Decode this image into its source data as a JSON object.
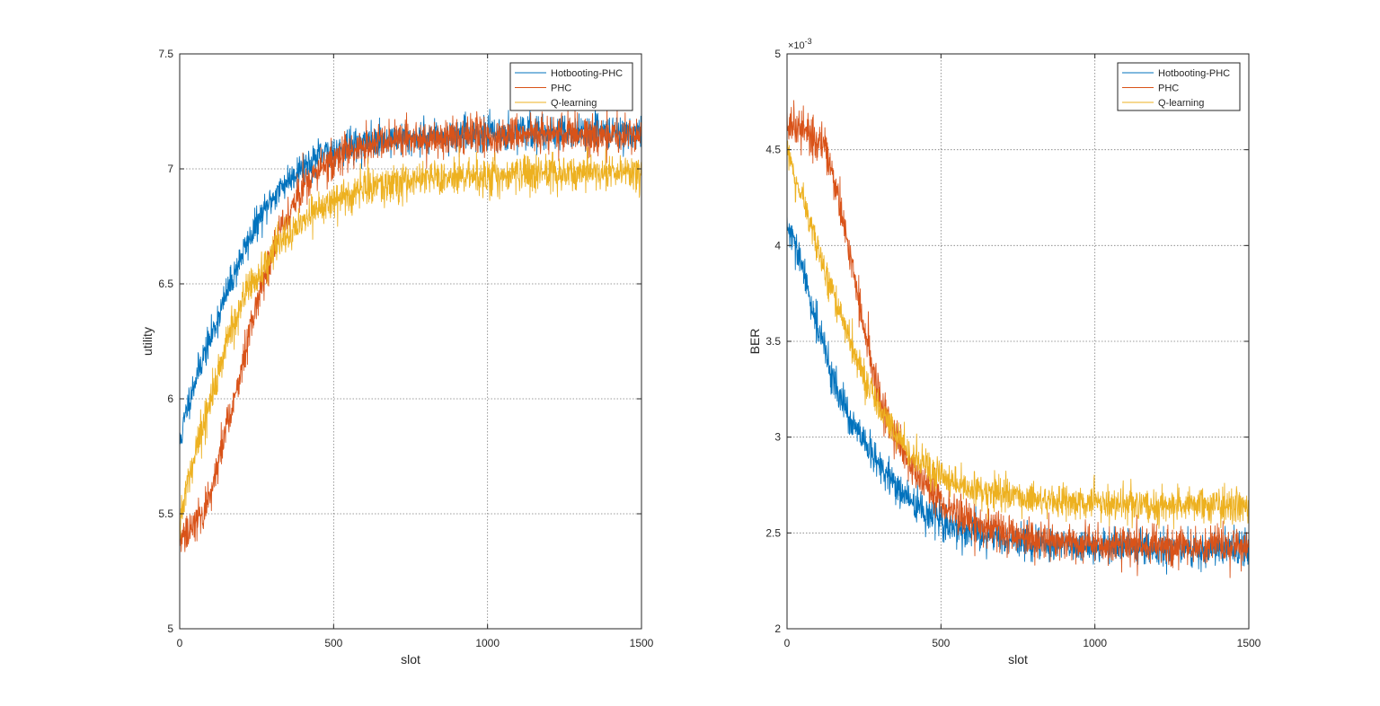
{
  "chart_data": [
    {
      "type": "line",
      "xlabel": "slot",
      "ylabel": "utility",
      "xlim": [
        0,
        1500
      ],
      "ylim": [
        5,
        7.5
      ],
      "xticks": [
        0,
        500,
        1000,
        1500
      ],
      "yticks": [
        5,
        5.5,
        6,
        6.5,
        7,
        7.5
      ],
      "xtick_labels": [
        "0",
        "500",
        "1000",
        "1500"
      ],
      "ytick_labels": [
        "5",
        "5.5",
        "6",
        "6.5",
        "7",
        "7.5"
      ],
      "grid": true,
      "legend_position": "top-right",
      "series": [
        {
          "name": "Hotbooting-PHC",
          "color": "#0072BD",
          "noise": 0.035,
          "x": [
            0,
            25,
            50,
            75,
            100,
            150,
            200,
            250,
            300,
            350,
            400,
            450,
            500,
            600,
            700,
            800,
            900,
            1000,
            1100,
            1200,
            1300,
            1400,
            1500
          ],
          "y": [
            5.8,
            5.97,
            6.08,
            6.18,
            6.26,
            6.45,
            6.62,
            6.76,
            6.87,
            6.95,
            7.01,
            7.05,
            7.08,
            7.11,
            7.13,
            7.14,
            7.15,
            7.15,
            7.16,
            7.16,
            7.16,
            7.16,
            7.16
          ]
        },
        {
          "name": "PHC",
          "color": "#D95319",
          "noise": 0.04,
          "x": [
            0,
            25,
            50,
            75,
            100,
            125,
            150,
            200,
            250,
            300,
            350,
            400,
            450,
            500,
            550,
            600,
            700,
            800,
            900,
            1000,
            1100,
            1200,
            1300,
            1400,
            1500
          ],
          "y": [
            5.38,
            5.42,
            5.44,
            5.5,
            5.6,
            5.72,
            5.86,
            6.13,
            6.42,
            6.64,
            6.8,
            6.92,
            6.99,
            7.04,
            7.08,
            7.1,
            7.12,
            7.13,
            7.14,
            7.14,
            7.15,
            7.15,
            7.15,
            7.15,
            7.15
          ]
        },
        {
          "name": "Q-learning",
          "color": "#EDB120",
          "noise": 0.04,
          "x": [
            0,
            25,
            50,
            75,
            100,
            150,
            200,
            250,
            300,
            350,
            400,
            450,
            500,
            600,
            700,
            800,
            900,
            1000,
            1100,
            1200,
            1300,
            1400,
            1500
          ],
          "y": [
            5.45,
            5.62,
            5.76,
            5.88,
            6.0,
            6.23,
            6.41,
            6.53,
            6.63,
            6.71,
            6.77,
            6.82,
            6.86,
            6.91,
            6.94,
            6.96,
            6.97,
            6.97,
            6.98,
            6.98,
            6.98,
            6.98,
            6.98
          ]
        }
      ]
    },
    {
      "type": "line",
      "xlabel": "slot",
      "ylabel": "BER",
      "y_exponent_label": "×10",
      "y_exponent": "-3",
      "xlim": [
        0,
        1500
      ],
      "ylim": [
        2,
        5
      ],
      "xticks": [
        0,
        500,
        1000,
        1500
      ],
      "yticks": [
        2,
        2.5,
        3,
        3.5,
        4,
        4.5,
        5
      ],
      "xtick_labels": [
        "0",
        "500",
        "1000",
        "1500"
      ],
      "ytick_labels": [
        "2",
        "2.5",
        "3",
        "3.5",
        "4",
        "4.5",
        "5"
      ],
      "grid": true,
      "legend_position": "top-right",
      "series": [
        {
          "name": "Hotbooting-PHC",
          "color": "#0072BD",
          "noise": 0.045,
          "x": [
            0,
            25,
            50,
            75,
            100,
            150,
            200,
            250,
            300,
            350,
            400,
            450,
            500,
            600,
            700,
            800,
            900,
            1000,
            1100,
            1200,
            1300,
            1400,
            1500
          ],
          "y": [
            4.1,
            4.0,
            3.88,
            3.72,
            3.58,
            3.3,
            3.1,
            2.97,
            2.85,
            2.75,
            2.67,
            2.6,
            2.56,
            2.5,
            2.47,
            2.45,
            2.44,
            2.43,
            2.42,
            2.42,
            2.42,
            2.42,
            2.42
          ]
        },
        {
          "name": "PHC",
          "color": "#D95319",
          "noise": 0.05,
          "x": [
            0,
            25,
            50,
            75,
            100,
            125,
            150,
            175,
            200,
            250,
            300,
            350,
            400,
            450,
            500,
            550,
            600,
            700,
            800,
            900,
            1000,
            1100,
            1200,
            1300,
            1400,
            1500
          ],
          "y": [
            4.6,
            4.62,
            4.6,
            4.58,
            4.55,
            4.5,
            4.35,
            4.2,
            4.0,
            3.55,
            3.2,
            3.0,
            2.86,
            2.75,
            2.66,
            2.6,
            2.55,
            2.5,
            2.47,
            2.45,
            2.44,
            2.44,
            2.43,
            2.43,
            2.43,
            2.43
          ]
        },
        {
          "name": "Q-learning",
          "color": "#EDB120",
          "noise": 0.045,
          "x": [
            0,
            25,
            50,
            75,
            100,
            150,
            200,
            250,
            300,
            350,
            400,
            450,
            500,
            550,
            600,
            700,
            800,
            900,
            1000,
            1100,
            1200,
            1300,
            1400,
            1500
          ],
          "y": [
            4.5,
            4.35,
            4.25,
            4.12,
            3.98,
            3.75,
            3.52,
            3.32,
            3.15,
            3.02,
            2.92,
            2.85,
            2.8,
            2.76,
            2.73,
            2.7,
            2.68,
            2.66,
            2.65,
            2.65,
            2.64,
            2.64,
            2.64,
            2.64
          ]
        }
      ]
    }
  ]
}
